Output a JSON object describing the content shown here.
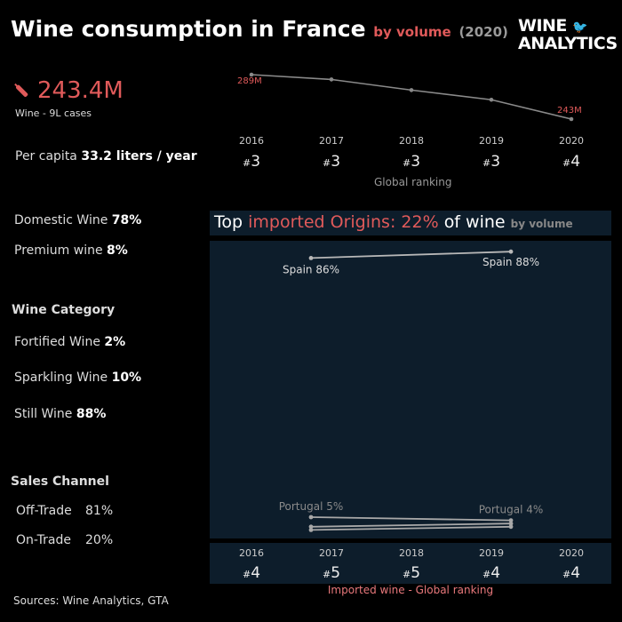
{
  "header": {
    "title": "Wine consumption in France",
    "by_volume": "by volume",
    "year": "(2020)"
  },
  "logo": {
    "line1": "WINE",
    "line2": "ANALYTICS"
  },
  "kpi": {
    "value": "243.4M",
    "sub": "Wine - 9L cases"
  },
  "per_capita": {
    "label": "Per capita",
    "value": "33.2 liters / year"
  },
  "domestic": {
    "label": "Domestic Wine",
    "value": "78%"
  },
  "premium": {
    "label": "Premium wine",
    "value": "8%"
  },
  "wine_category": {
    "title": "Wine Category",
    "items": [
      {
        "label": "Fortified Wine",
        "value": "2%"
      },
      {
        "label": "Sparkling Wine",
        "value": "10%"
      },
      {
        "label": "Still Wine",
        "value": "88%"
      }
    ]
  },
  "sales_channel": {
    "title": "Sales Channel",
    "items": [
      {
        "label": "Off-Trade",
        "value": "81%"
      },
      {
        "label": "On-Trade",
        "value": "20%"
      }
    ]
  },
  "imported": {
    "title_pre": "Top",
    "title_red": "imported Origins: 22%",
    "title_post": "of wine",
    "title_small": "by volume",
    "caption": "Imported wine - Global ranking"
  },
  "source": "Sources: Wine Analytics, GTA",
  "colors": {
    "accent": "#e05a5a",
    "panel": "#0d1d2b",
    "line": "#8a8a8a"
  },
  "chart_data": [
    {
      "type": "line",
      "x": [
        "2016",
        "2017",
        "2018",
        "2019",
        "2020"
      ],
      "series": [
        {
          "values": [
            289,
            284,
            273,
            263,
            243
          ]
        }
      ],
      "labels": {
        "first": "289M",
        "last": "243M"
      },
      "ranking": [
        "3",
        "3",
        "3",
        "3",
        "4"
      ],
      "caption": "Global ranking"
    },
    {
      "type": "line",
      "x": [
        "2016",
        "2020"
      ],
      "series": [
        {
          "name": "Spain",
          "values": [
            86,
            88
          ],
          "labels": [
            "Spain 86%",
            "Spain 88%"
          ]
        },
        {
          "name": "Portugal",
          "values": [
            5,
            4
          ],
          "labels": [
            "Portugal 5%",
            "Portugal 4%"
          ]
        },
        {
          "values": [
            2,
            3
          ]
        },
        {
          "values": [
            1,
            2
          ]
        }
      ],
      "ranking_years": [
        "2016",
        "2017",
        "2018",
        "2019",
        "2020"
      ],
      "ranking": [
        "4",
        "5",
        "5",
        "4",
        "4"
      ]
    }
  ]
}
